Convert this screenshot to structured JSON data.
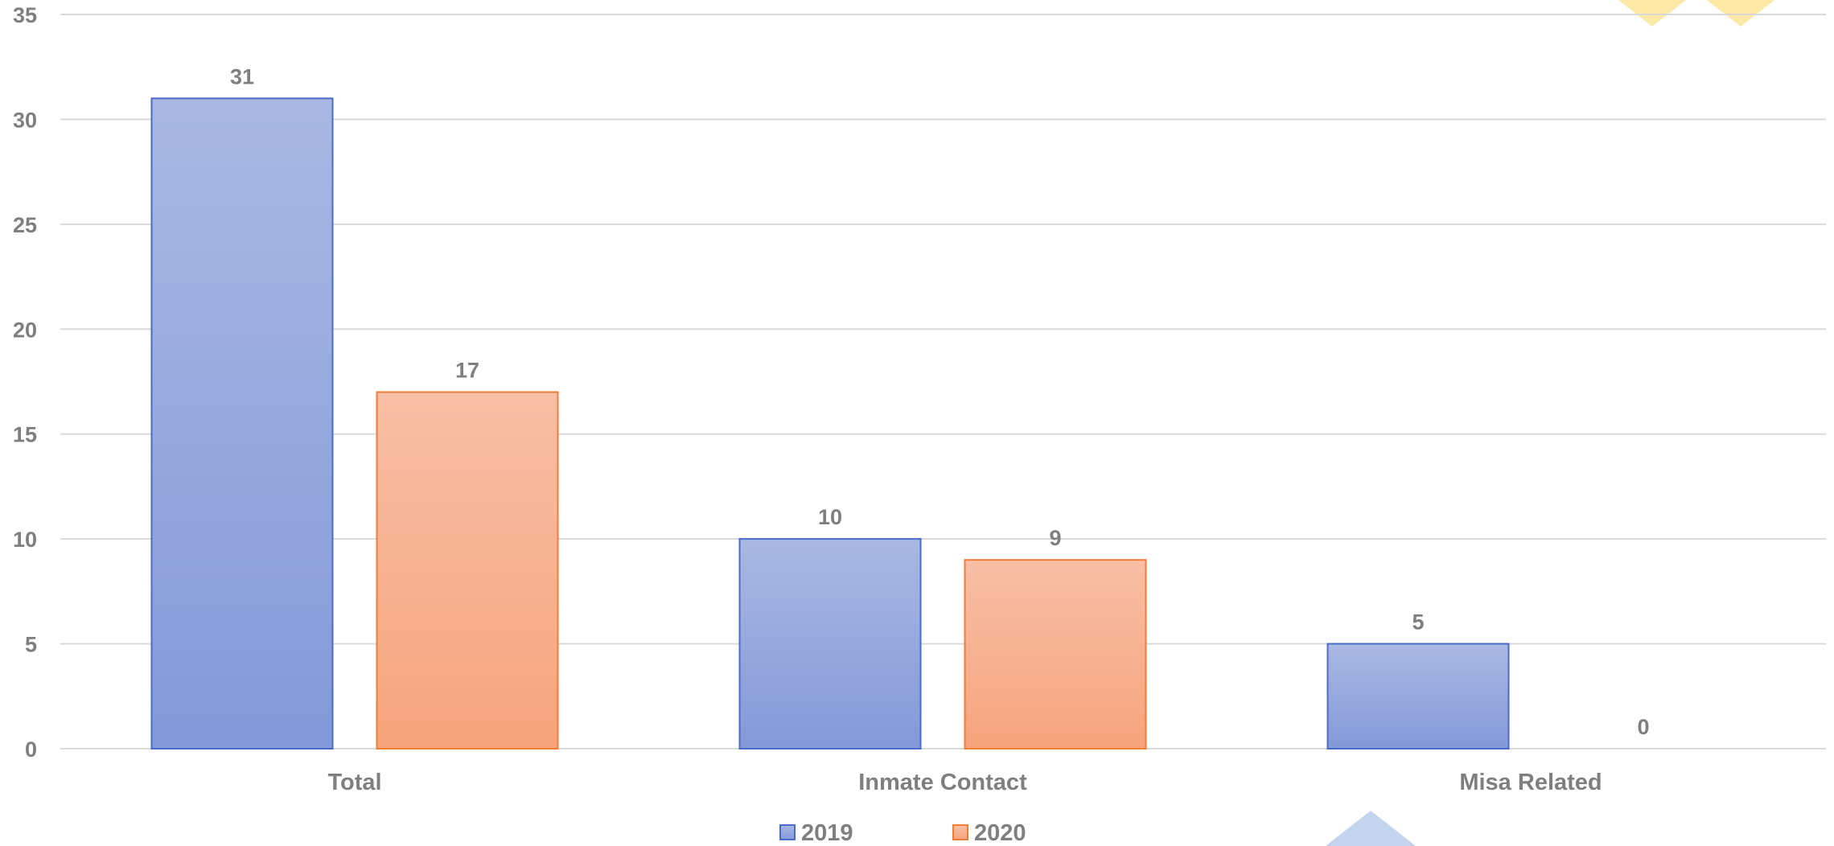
{
  "chart_data": {
    "type": "bar",
    "categories": [
      "Total",
      "Inmate Contact",
      "Misa Related"
    ],
    "series": [
      {
        "name": "2019",
        "values": [
          31,
          10,
          5
        ]
      },
      {
        "name": "2020",
        "values": [
          17,
          9,
          0
        ]
      }
    ],
    "ylim": [
      0,
      35
    ],
    "yticks": [
      0,
      5,
      10,
      15,
      20,
      25,
      30,
      35
    ],
    "grid": true,
    "legend": "bottom-center",
    "data_labels": true,
    "colors": {
      "2019_top": "#aab8e2",
      "2019_bottom": "#8399d8",
      "2019_border": "#4a6cc8",
      "2020_top": "#f7bfa6",
      "2020_bottom": "#f6a47c",
      "2020_border": "#ee7d38",
      "grid": "#d9d9d9",
      "text": "#7f7f7f"
    }
  },
  "decor": {
    "yellow": "#fde9a6",
    "blue": "#c4d3ee"
  }
}
